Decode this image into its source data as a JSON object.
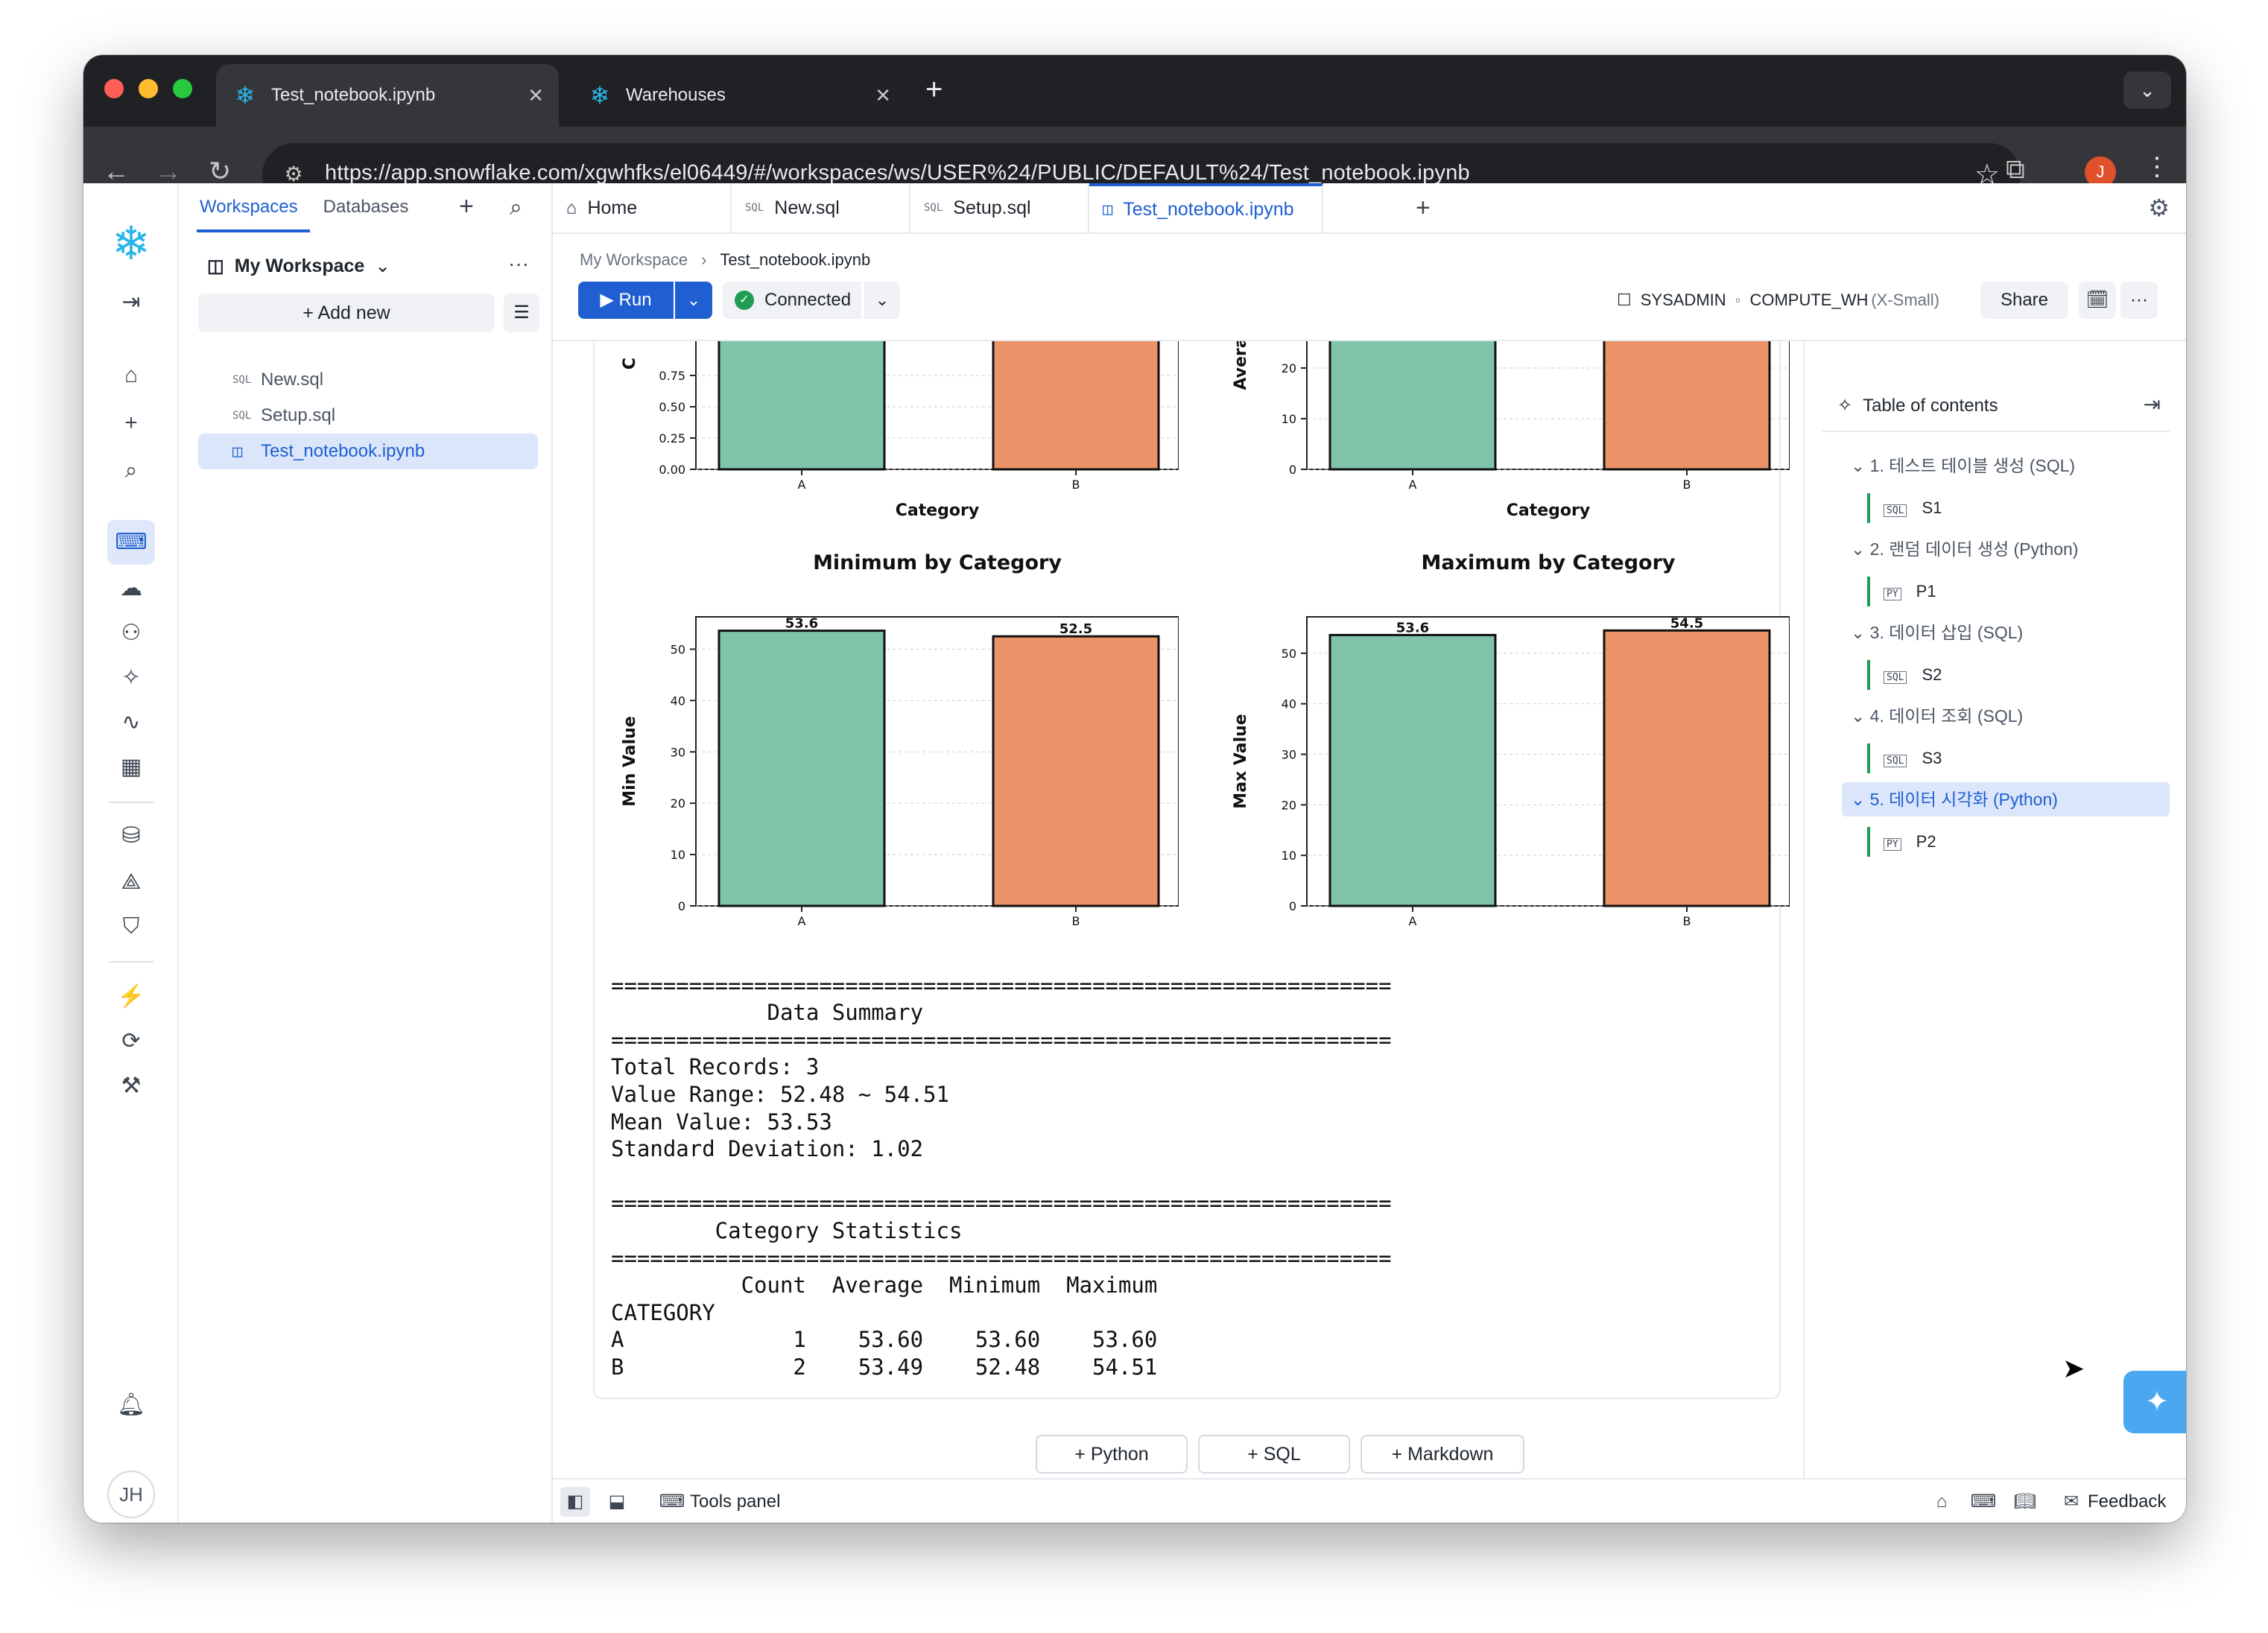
{
  "browser": {
    "tabs": [
      {
        "title": "Test_notebook.ipynb",
        "active": true
      },
      {
        "title": "Warehouses",
        "active": false
      }
    ],
    "url": "https://app.snowflake.com/xgwhfks/el06449/#/workspaces/ws/USER%24/PUBLIC/DEFAULT%24/Test_notebook.ipynb",
    "profile_initial": "J"
  },
  "sidebar": {
    "tabs": [
      "Workspaces",
      "Databases"
    ],
    "workspace": "My Workspace",
    "add_new": "Add new",
    "files": [
      {
        "name": "New.sql",
        "type": "SQL"
      },
      {
        "name": "Setup.sql",
        "type": "SQL"
      },
      {
        "name": "Test_notebook.ipynb",
        "type": "NB",
        "selected": true
      }
    ],
    "user_initials": "JH"
  },
  "editor": {
    "tabs": [
      {
        "label": "Home"
      },
      {
        "label": "New.sql"
      },
      {
        "label": "Setup.sql"
      },
      {
        "label": "Test_notebook.ipynb",
        "active": true
      }
    ],
    "breadcrumb": [
      "My Workspace",
      "Test_notebook.ipynb"
    ],
    "run_label": "Run",
    "connection_label": "Connected",
    "role": "SYSADMIN",
    "warehouse": "COMPUTE_WH",
    "warehouse_size": "(X-Small)",
    "share_label": "Share"
  },
  "chart_data": [
    {
      "type": "bar",
      "title": "",
      "categories": [
        "A",
        "B"
      ],
      "values": [
        null,
        null
      ],
      "xlabel": "Category",
      "ylabel": "C",
      "yticks": [
        "0.00",
        "0.25",
        "0.50",
        "0.75"
      ],
      "colors": [
        "#7fc3a8",
        "#ec9268"
      ],
      "note": ""
    },
    {
      "type": "bar",
      "title": "",
      "categories": [
        "A",
        "B"
      ],
      "values": [
        null,
        null
      ],
      "xlabel": "Category",
      "ylabel": "Avera",
      "yticks": [
        "0",
        "10",
        "20"
      ],
      "colors": [
        "#7fc3a8",
        "#ec9268"
      ]
    },
    {
      "type": "bar",
      "title": "Minimum by Category",
      "categories": [
        "A",
        "B"
      ],
      "values": [
        53.6,
        52.5
      ],
      "labels": [
        "53.6",
        "52.5"
      ],
      "xlabel": "Category",
      "ylabel": "Min Value",
      "ylim": [
        0,
        56.3
      ],
      "yticks": [
        "0",
        "10",
        "20",
        "30",
        "40",
        "50"
      ],
      "colors": [
        "#7fc3a8",
        "#ec9268"
      ]
    },
    {
      "type": "bar",
      "title": "Maximum by Category",
      "categories": [
        "A",
        "B"
      ],
      "values": [
        53.6,
        54.5
      ],
      "labels": [
        "53.6",
        "54.5"
      ],
      "xlabel": "Category",
      "ylabel": "Max Value",
      "ylim": [
        0,
        57.2
      ],
      "yticks": [
        "0",
        "10",
        "20",
        "30",
        "40",
        "50"
      ],
      "colors": [
        "#7fc3a8",
        "#ec9268"
      ]
    }
  ],
  "output": {
    "rule": "============================================================",
    "summary_title": "            Data Summary",
    "summary_lines": [
      "Total Records: 3",
      "Value Range: 52.48 ~ 54.51",
      "Mean Value: 53.53",
      "Standard Deviation: 1.02"
    ],
    "stats_title": "        Category Statistics",
    "stats_header": "          Count  Average  Minimum  Maximum",
    "stats_index": "CATEGORY",
    "stats_rows": [
      "A             1    53.60    53.60    53.60",
      "B             2    53.49    52.48    54.51"
    ]
  },
  "add_cells": [
    "Python",
    "SQL",
    "Markdown"
  ],
  "toc": {
    "title": "Table of contents",
    "sections": [
      {
        "label": "1. 테스트 테이블 생성 (SQL)",
        "cell": "S1",
        "cell_type": "SQL"
      },
      {
        "label": "2. 랜덤 데이터 생성 (Python)",
        "cell": "P1",
        "cell_type": "PY"
      },
      {
        "label": "3. 데이터 삽입 (SQL)",
        "cell": "S2",
        "cell_type": "SQL"
      },
      {
        "label": "4. 데이터 조회 (SQL)",
        "cell": "S3",
        "cell_type": "SQL"
      },
      {
        "label": "5. 데이터 시각화 (Python)",
        "cell": "P2",
        "cell_type": "PY",
        "selected": true
      }
    ]
  },
  "bottom": {
    "tools_panel": "Tools panel",
    "feedback": "Feedback"
  }
}
